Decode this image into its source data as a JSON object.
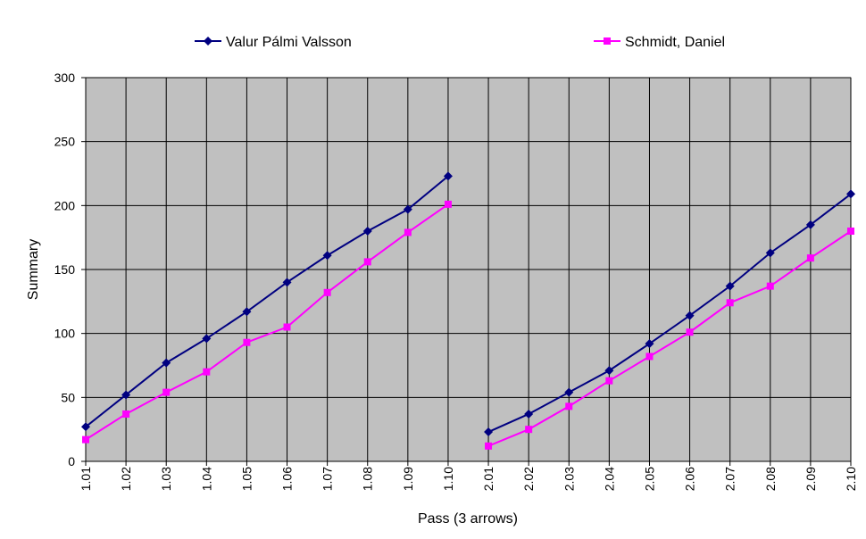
{
  "chart_data": {
    "type": "line",
    "xlabel": "Pass (3 arrows)",
    "ylabel": "Summary",
    "ylim": [
      0,
      300
    ],
    "yticks": [
      0,
      50,
      100,
      150,
      200,
      250,
      300
    ],
    "categories": [
      "1.01",
      "1.02",
      "1.03",
      "1.04",
      "1.05",
      "1.06",
      "1.07",
      "1.08",
      "1.09",
      "1.10",
      "2.01",
      "2.02",
      "2.03",
      "2.04",
      "2.05",
      "2.06",
      "2.07",
      "2.08",
      "2.09",
      "2.10"
    ],
    "segments": [
      [
        0,
        9
      ],
      [
        10,
        19
      ]
    ],
    "grid": true,
    "legend_position": "top",
    "plot_background": "#c0c0c0",
    "series": [
      {
        "name": "Valur Pálmi Valsson",
        "color": "#000080",
        "marker": "diamond",
        "values": [
          27,
          52,
          77,
          96,
          117,
          140,
          161,
          180,
          197,
          223,
          23,
          37,
          54,
          71,
          92,
          114,
          137,
          163,
          185,
          209
        ]
      },
      {
        "name": "Schmidt, Daniel",
        "color": "#ff00ff",
        "marker": "square",
        "values": [
          17,
          37,
          54,
          70,
          93,
          105,
          132,
          156,
          179,
          201,
          12,
          25,
          43,
          63,
          82,
          101,
          124,
          137,
          159,
          180
        ]
      }
    ]
  }
}
